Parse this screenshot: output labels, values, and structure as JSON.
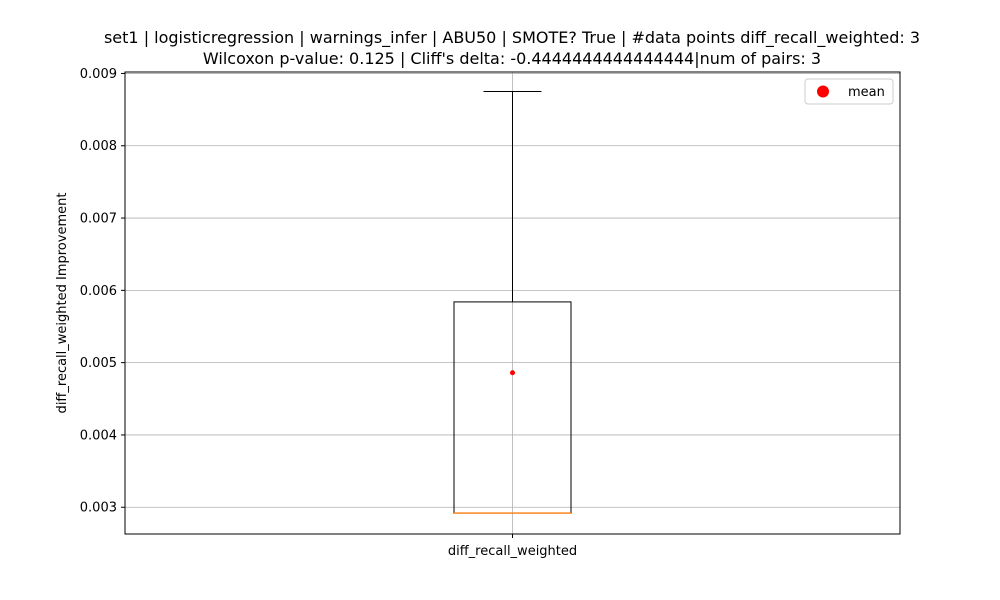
{
  "chart_data": {
    "type": "box",
    "title_lines": [
      "set1 | logisticregression | warnings_infer | ABU50 | SMOTE? True | #data points diff_recall_weighted: 3",
      "Wilcoxon p-value: 0.125 | Cliff's delta: -0.4444444444444444|num of pairs: 3"
    ],
    "xlabel": "",
    "ylabel": "diff_recall_weighted Improvement",
    "categories": [
      "diff_recall_weighted"
    ],
    "ylim": [
      0.00263,
      0.00902
    ],
    "yticks": [
      0.003,
      0.004,
      0.005,
      0.006,
      0.007,
      0.008,
      0.009
    ],
    "ytick_labels": [
      "0.003",
      "0.004",
      "0.005",
      "0.006",
      "0.007",
      "0.008",
      "0.009"
    ],
    "grid": true,
    "legend": {
      "position": "top-right",
      "entries": [
        {
          "label": "mean",
          "marker": "circle",
          "color": "#ff0000"
        }
      ]
    },
    "boxes": [
      {
        "category": "diff_recall_weighted",
        "whisker_low": 0.00292,
        "q1": 0.00292,
        "median": 0.00292,
        "q3": 0.00584,
        "whisker_high": 0.00875,
        "mean": 0.00486
      }
    ],
    "colors": {
      "box": "#000000",
      "median": "#ff7f0e",
      "mean": "#ff0000",
      "grid": "#b0b0b0"
    }
  }
}
